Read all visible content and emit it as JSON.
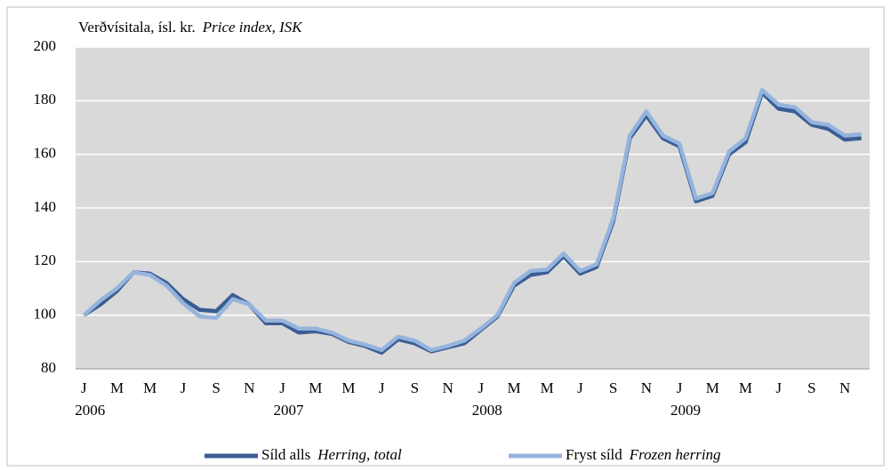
{
  "chart_data": {
    "type": "line",
    "ylabel": "Verðvísitala, ísl. kr.",
    "ylabel_en": "Price index, ISK",
    "categories": [
      "J",
      null,
      "M",
      null,
      "M",
      null,
      "J",
      null,
      "S",
      null,
      "N",
      null,
      "J",
      null,
      "M",
      null,
      "M",
      null,
      "J",
      null,
      "S",
      null,
      "N",
      null,
      "J",
      null,
      "M",
      null,
      "M",
      null,
      "J",
      null,
      "S",
      null,
      "N",
      null,
      "J",
      null,
      "M",
      null,
      "M",
      null,
      "J",
      null,
      "S",
      null,
      "N",
      null
    ],
    "years": [
      "2006",
      "2007",
      "2008",
      "2009"
    ],
    "series": [
      {
        "name": "Síld alls",
        "name_en": "Herring, total",
        "color": "#3a5d93",
        "values": [
          100,
          104,
          109,
          116,
          115.5,
          112,
          106,
          102,
          101.5,
          107.5,
          104,
          97,
          97,
          93.5,
          94,
          93,
          90,
          88.5,
          86,
          91,
          89.5,
          86.5,
          88,
          89.5,
          94.5,
          99.5,
          111,
          115,
          116,
          122,
          115.5,
          118,
          135,
          166,
          174.5,
          166,
          163,
          142.5,
          144.5,
          160,
          164.5,
          183,
          177,
          176,
          171,
          169.5,
          165.5,
          166
        ]
      },
      {
        "name": "Fryst síld",
        "name_en": "Frozen herring",
        "color": "#95b4dd",
        "values": [
          100,
          105.5,
          110,
          116,
          115,
          111,
          104.5,
          99.5,
          99,
          106,
          104,
          98,
          98,
          95,
          95,
          93.5,
          90.5,
          89,
          87,
          92,
          90.5,
          87,
          88.5,
          90.5,
          95,
          100,
          112,
          116.5,
          117,
          123,
          116.5,
          119,
          136,
          167,
          176,
          167,
          164,
          143.5,
          145.5,
          161,
          166,
          184,
          178.5,
          177.5,
          172,
          171,
          167,
          167.5
        ]
      }
    ],
    "ylim": [
      80,
      200
    ],
    "yticks": [
      80,
      100,
      120,
      140,
      160,
      180,
      200
    ],
    "grid": true
  }
}
